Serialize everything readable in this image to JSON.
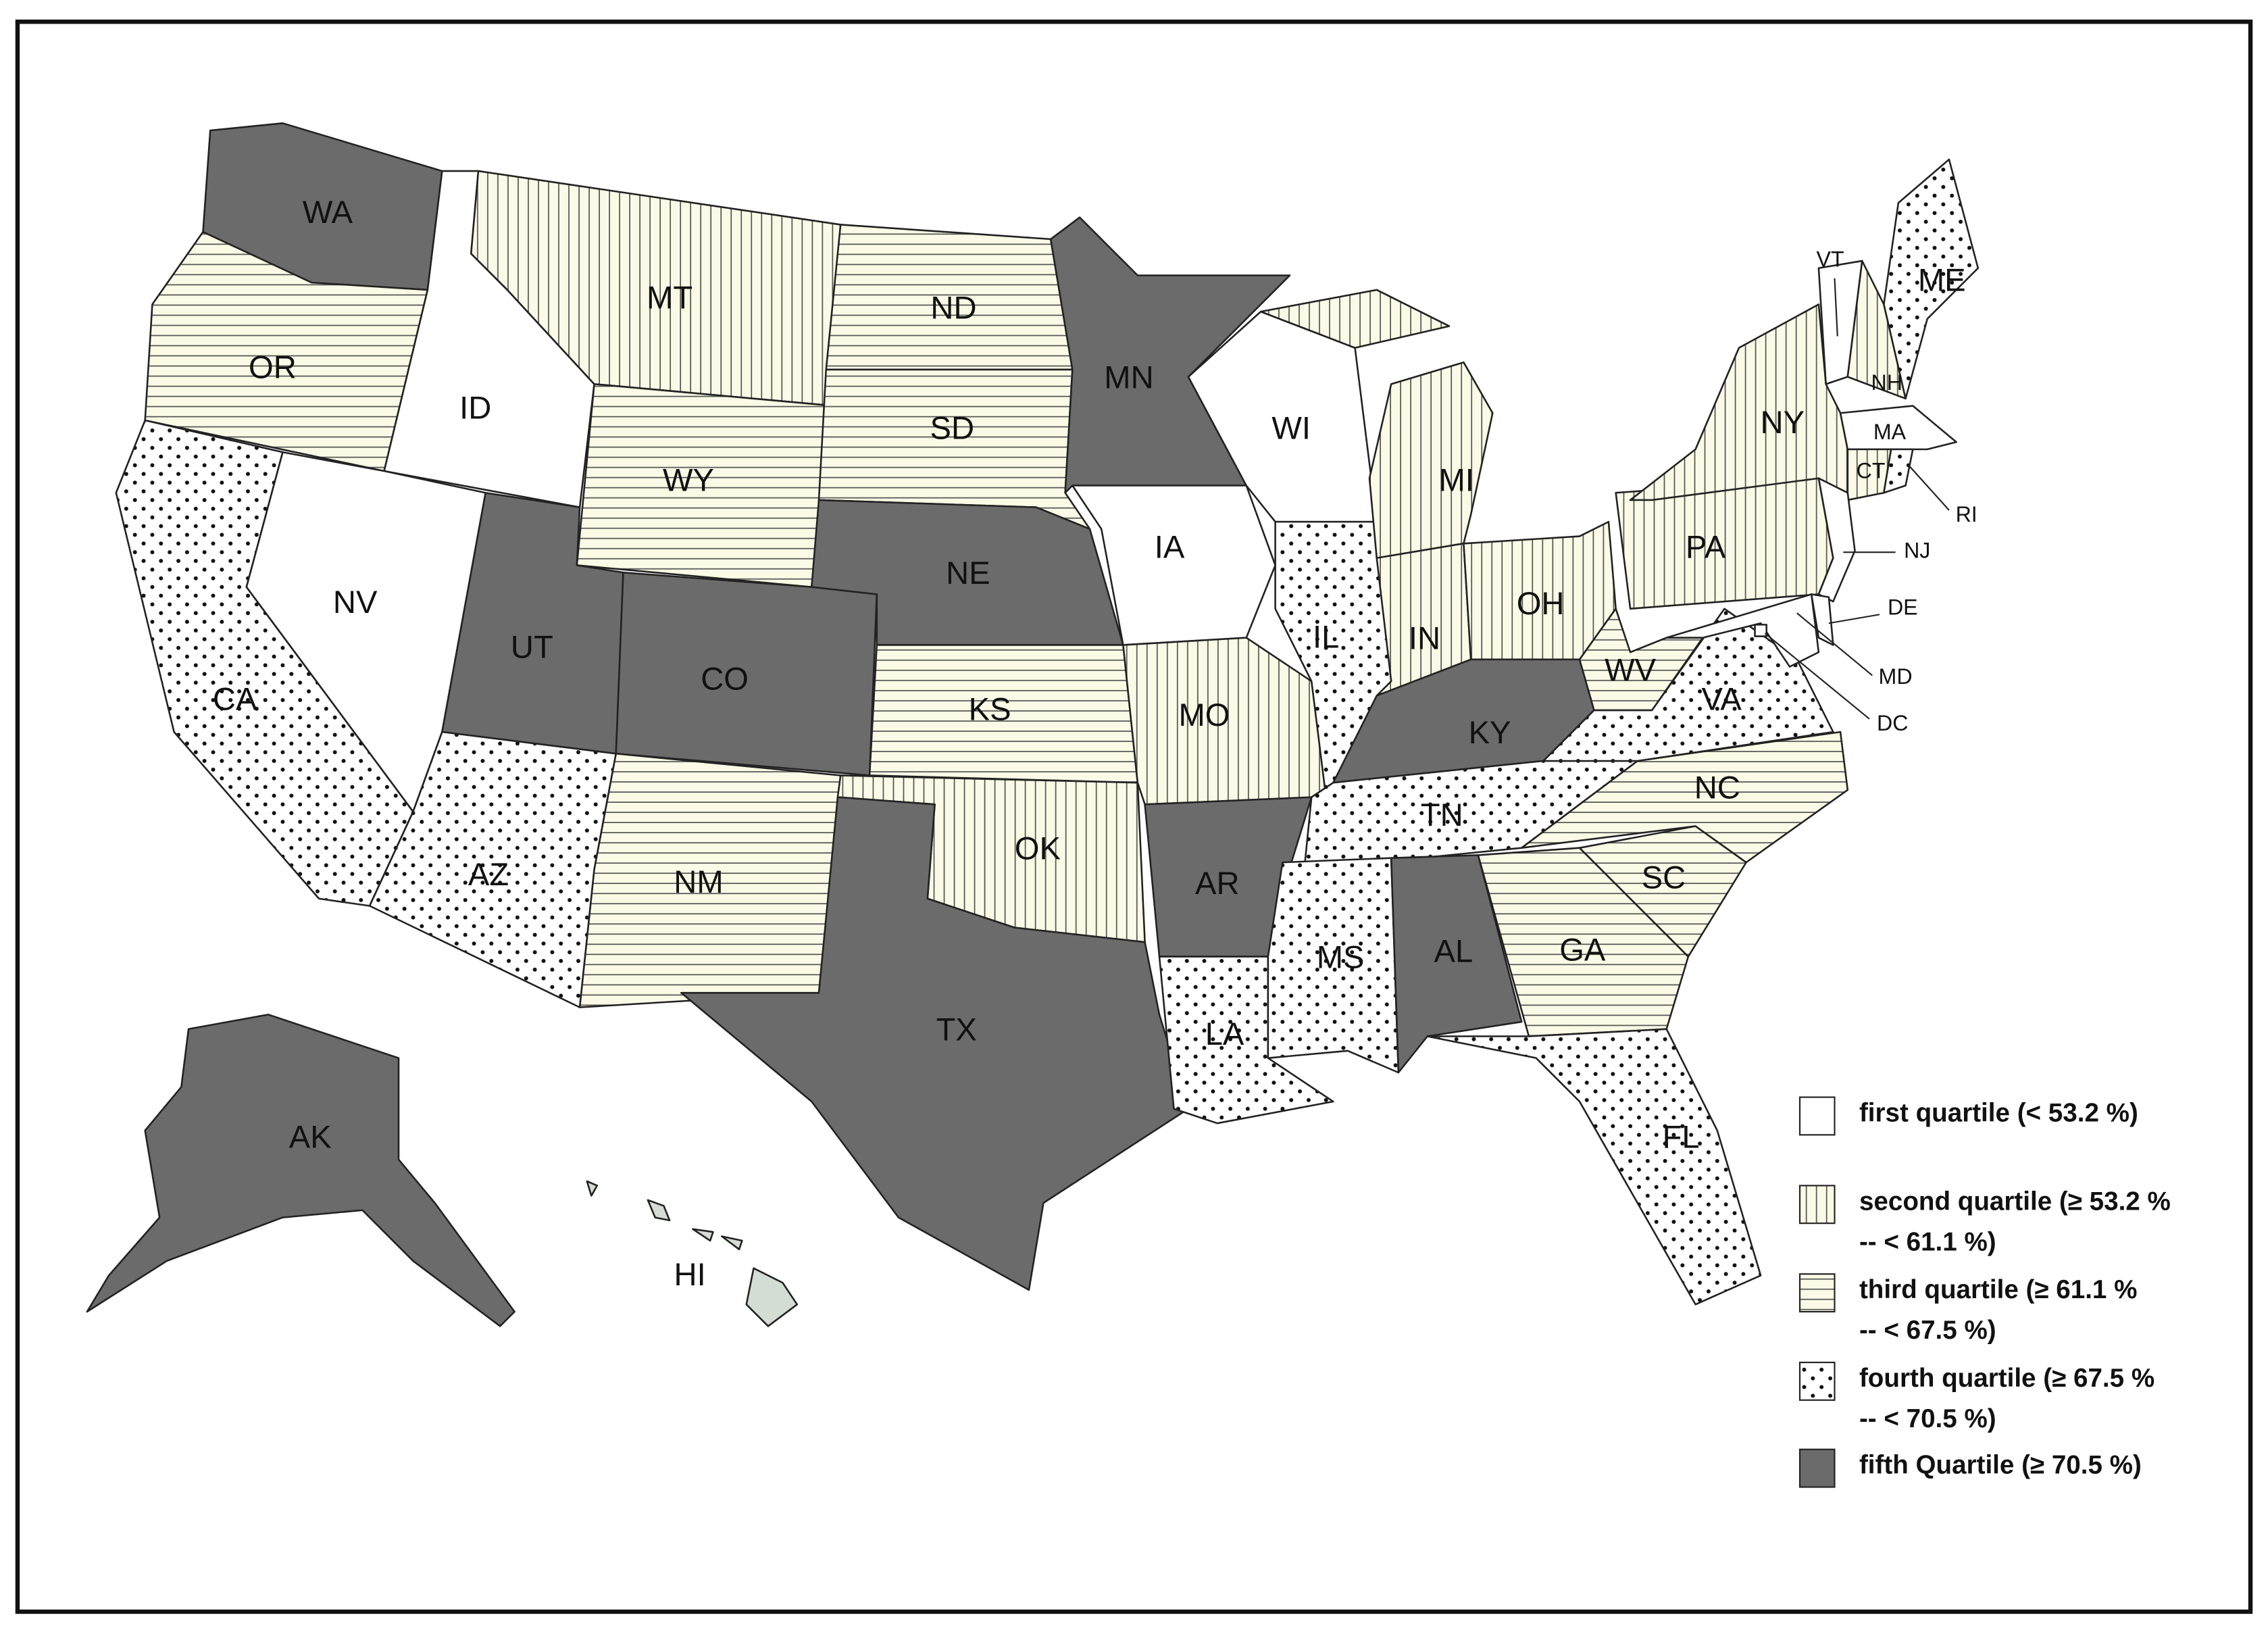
{
  "map": {
    "states": [
      "WA",
      "OR",
      "CA",
      "ID",
      "NV",
      "MT",
      "WY",
      "UT",
      "CO",
      "AZ",
      "NM",
      "ND",
      "SD",
      "NE",
      "KS",
      "OK",
      "TX",
      "MN",
      "IA",
      "MO",
      "AR",
      "LA",
      "WI",
      "IL",
      "MI",
      "IN",
      "OH",
      "KY",
      "TN",
      "MS",
      "AL",
      "GA",
      "FL",
      "SC",
      "NC",
      "VA",
      "WV",
      "PA",
      "NY",
      "VT",
      "NH",
      "ME",
      "MA",
      "CT",
      "RI",
      "NJ",
      "DE",
      "MD",
      "DC",
      "AK",
      "HI"
    ]
  },
  "legend": [
    {
      "label": [
        "first quartile (< 53.2 %)"
      ],
      "states": [
        "ID",
        "NV",
        "WI",
        "IA",
        "VT",
        "MA",
        "NJ",
        "DE",
        "MD",
        "DC"
      ]
    },
    {
      "label": [
        "second quartile (≥ 53.2 %",
        "-- < 61.1 %)"
      ],
      "states": [
        "MT",
        "MO",
        "OK",
        "MI",
        "IN",
        "OH",
        "NY",
        "PA",
        "NH",
        "CT"
      ]
    },
    {
      "label": [
        "third quartile (≥ 61.1 %",
        "-- < 67.5 %)"
      ],
      "states": [
        "OR",
        "WY",
        "ND",
        "SD",
        "KS",
        "NM",
        "NC",
        "SC",
        "GA",
        "WV"
      ]
    },
    {
      "label": [
        "fourth quartile (≥ 67.5 %",
        "-- < 70.5 %)"
      ],
      "states": [
        "CA",
        "AZ",
        "IL",
        "TN",
        "MS",
        "LA",
        "FL",
        "VA",
        "ME",
        "RI"
      ]
    },
    {
      "label": [
        "fifth Quartile (≥ 70.5 %)"
      ],
      "states": [
        "WA",
        "UT",
        "CO",
        "NE",
        "MN",
        "TX",
        "AR",
        "AL",
        "KY",
        "AK"
      ]
    }
  ]
}
